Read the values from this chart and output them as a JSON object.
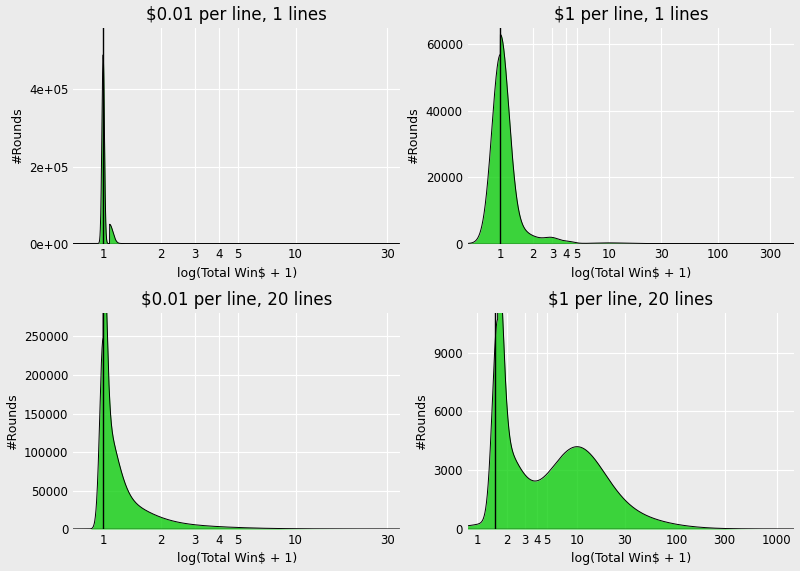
{
  "panels": [
    {
      "title": "$0.01 per line, 1 lines",
      "xticks": [
        1,
        2,
        3,
        4,
        5,
        10,
        30
      ],
      "xlim": [
        0.7,
        35
      ],
      "ylim": [
        0,
        560000
      ],
      "yticks": [
        0,
        200000,
        400000
      ],
      "ytick_labels": [
        "0e+00",
        "2e+05",
        "4e+05"
      ],
      "ylabel": "#Rounds",
      "xlabel": "log(Total Win$ + 1)",
      "vline_x": 1.0,
      "curves": [
        {
          "peak_x": 1.0,
          "peak_y": 490000,
          "sigma": 0.015,
          "side": "both"
        },
        {
          "peak_x": 1.08,
          "peak_y": 50000,
          "sigma": 0.04,
          "side": "right"
        }
      ]
    },
    {
      "title": "$1 per line, 1 lines",
      "xticks": [
        1,
        2,
        3,
        4,
        5,
        10,
        30,
        100,
        300
      ],
      "xlim": [
        0.5,
        500
      ],
      "ylim": [
        0,
        65000
      ],
      "yticks": [
        0,
        20000,
        40000,
        60000
      ],
      "ytick_labels": [
        "0",
        "20000",
        "40000",
        "60000"
      ],
      "ylabel": "#Rounds",
      "xlabel": "log(Total Win$ + 1)",
      "vline_x": 1.0,
      "curves": [
        {
          "peak_x": 1.0,
          "peak_y": 57000,
          "sigma": 0.18,
          "side": "both"
        },
        {
          "peak_x": 1.0,
          "peak_y": 6000,
          "sigma": 0.5,
          "side": "right"
        },
        {
          "peak_x": 3.0,
          "peak_y": 1300,
          "sigma": 0.15,
          "side": "both"
        },
        {
          "peak_x": 4.2,
          "peak_y": 500,
          "sigma": 0.12,
          "side": "both"
        },
        {
          "peak_x": 10.0,
          "peak_y": 200,
          "sigma": 0.3,
          "side": "both"
        }
      ]
    },
    {
      "title": "$0.01 per line, 20 lines",
      "xticks": [
        1,
        2,
        3,
        4,
        5,
        10,
        30
      ],
      "xlim": [
        0.7,
        35
      ],
      "ylim": [
        0,
        280000
      ],
      "yticks": [
        0,
        50000,
        100000,
        150000,
        200000,
        250000
      ],
      "ytick_labels": [
        "0",
        "50000",
        "100000",
        "150000",
        "200000",
        "250000"
      ],
      "ylabel": "#Rounds",
      "xlabel": "log(Total Win$ + 1)",
      "vline_x": 1.0,
      "curves": [
        {
          "peak_x": 1.0,
          "peak_y": 248000,
          "sigma": 0.04,
          "side": "both"
        },
        {
          "peak_x": 1.0,
          "peak_y": 100000,
          "sigma": 0.15,
          "side": "right"
        },
        {
          "peak_x": 1.0,
          "peak_y": 35000,
          "sigma": 0.4,
          "side": "right"
        },
        {
          "peak_x": 1.0,
          "peak_y": 10000,
          "sigma": 0.9,
          "side": "right"
        }
      ]
    },
    {
      "title": "$1 per line, 20 lines",
      "xticks": [
        1,
        2,
        3,
        4,
        5,
        10,
        30,
        100,
        300,
        1000
      ],
      "xlim": [
        0.8,
        1500
      ],
      "ylim": [
        0,
        11000
      ],
      "yticks": [
        0,
        3000,
        6000,
        9000
      ],
      "ytick_labels": [
        "0",
        "3000",
        "6000",
        "9000"
      ],
      "ylabel": "#Rounds",
      "xlabel": "log(Total Win$ + 1)",
      "vline_x": 1.5,
      "curves": [
        {
          "peak_x": 1.6,
          "peak_y": 10200,
          "sigma": 0.12,
          "side": "both"
        },
        {
          "peak_x": 1.6,
          "peak_y": 4000,
          "sigma": 0.45,
          "side": "right"
        },
        {
          "peak_x": 10.0,
          "peak_y": 2700,
          "sigma": 0.6,
          "side": "both"
        },
        {
          "peak_x": 10.0,
          "peak_y": 1500,
          "sigma": 1.2,
          "side": "both"
        }
      ]
    }
  ],
  "bg_color": "#EBEBEB",
  "grid_color": "#FFFFFF",
  "fill_color": "#00CC00",
  "fill_alpha": 0.75,
  "line_color": "#000000",
  "title_fontsize": 12,
  "label_fontsize": 9,
  "tick_fontsize": 8.5
}
